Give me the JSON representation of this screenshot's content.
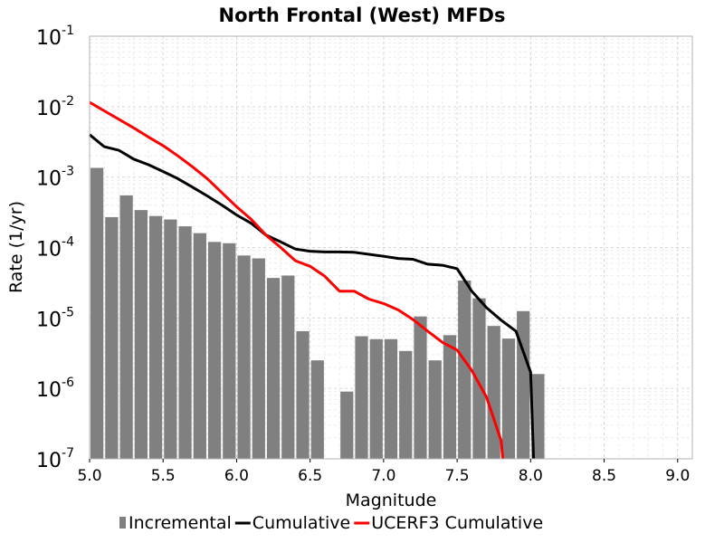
{
  "chart_data": {
    "type": "bar",
    "title": "North Frontal  (West) MFDs",
    "xlabel": "Magnitude",
    "ylabel": "Rate (1/yr)",
    "xlim": [
      5.0,
      9.1
    ],
    "ylim": [
      1e-07,
      0.1
    ],
    "yscale": "log",
    "grid": true,
    "legend_position": "bottom",
    "xticks": [
      "5.0",
      "5.5",
      "6.0",
      "6.5",
      "7.0",
      "7.5",
      "8.0",
      "8.5",
      "9.0"
    ],
    "xtick_values": [
      5.0,
      5.5,
      6.0,
      6.5,
      7.0,
      7.5,
      8.0,
      8.5,
      9.0
    ],
    "ytick_exponents": [
      -7,
      -6,
      -5,
      -4,
      -3,
      -2,
      -1
    ],
    "ytick_base": "10",
    "series": [
      {
        "name": "Incremental",
        "kind": "bar",
        "color": "#808080",
        "bar_width": 0.1,
        "x": [
          5.05,
          5.15,
          5.25,
          5.35,
          5.45,
          5.55,
          5.65,
          5.75,
          5.85,
          5.95,
          6.05,
          6.15,
          6.25,
          6.35,
          6.45,
          6.55,
          6.75,
          6.85,
          6.95,
          7.05,
          7.15,
          7.25,
          7.35,
          7.45,
          7.55,
          7.65,
          7.75,
          7.85,
          7.95,
          8.05
        ],
        "values": [
          0.00135,
          0.00027,
          0.00055,
          0.00034,
          0.00028,
          0.00025,
          0.0002,
          0.00016,
          0.00012,
          0.000115,
          7.7e-05,
          7e-05,
          3.7e-05,
          4e-05,
          6.5e-06,
          2.5e-06,
          9e-07,
          5.5e-06,
          5e-06,
          5e-06,
          3.4e-06,
          1.05e-05,
          2.5e-06,
          5.7e-06,
          3.4e-05,
          1.9e-05,
          7.7e-06,
          5.1e-06,
          1.25e-05,
          1.6e-06
        ]
      },
      {
        "name": "Cumulative",
        "kind": "line",
        "color": "#000000",
        "x": [
          5.0,
          5.1,
          5.2,
          5.3,
          5.4,
          5.5,
          5.6,
          5.7,
          5.8,
          5.9,
          6.0,
          6.1,
          6.2,
          6.3,
          6.4,
          6.5,
          6.6,
          6.7,
          6.8,
          6.9,
          7.0,
          7.1,
          7.2,
          7.3,
          7.4,
          7.5,
          7.6,
          7.7,
          7.8,
          7.9,
          8.0,
          8.02
        ],
        "values": [
          0.004,
          0.0027,
          0.0024,
          0.0018,
          0.0015,
          0.0012,
          0.00095,
          0.00072,
          0.00054,
          0.0004,
          0.00029,
          0.00022,
          0.00015,
          0.00012,
          9.5e-05,
          8.85e-05,
          8.65e-05,
          8.65e-05,
          8.55e-05,
          8e-05,
          7.5e-05,
          7e-05,
          6.8e-05,
          5.8e-05,
          5.6e-05,
          5e-05,
          2.4e-05,
          1.4e-05,
          9.3e-06,
          6.5e-06,
          1.7e-06,
          1e-07
        ]
      },
      {
        "name": "UCERF3 Cumulative",
        "kind": "line",
        "color": "#ff0000",
        "x": [
          5.0,
          5.1,
          5.2,
          5.3,
          5.4,
          5.5,
          5.6,
          5.7,
          5.8,
          5.9,
          6.0,
          6.1,
          6.2,
          6.3,
          6.4,
          6.5,
          6.6,
          6.7,
          6.8,
          6.9,
          7.0,
          7.1,
          7.2,
          7.3,
          7.4,
          7.5,
          7.6,
          7.7,
          7.8,
          7.81
        ],
        "values": [
          0.0115,
          0.0087,
          0.0066,
          0.005,
          0.0037,
          0.0028,
          0.002,
          0.0014,
          0.00095,
          0.0006,
          0.00038,
          0.00025,
          0.00015,
          0.0001,
          6.5e-05,
          5.4e-05,
          3.9e-05,
          2.4e-05,
          2.4e-05,
          1.85e-05,
          1.6e-05,
          1.3e-05,
          9.5e-06,
          6.5e-06,
          4.5e-06,
          3.5e-06,
          1.8e-06,
          7.5e-07,
          1.8e-07,
          1e-07
        ]
      }
    ]
  }
}
